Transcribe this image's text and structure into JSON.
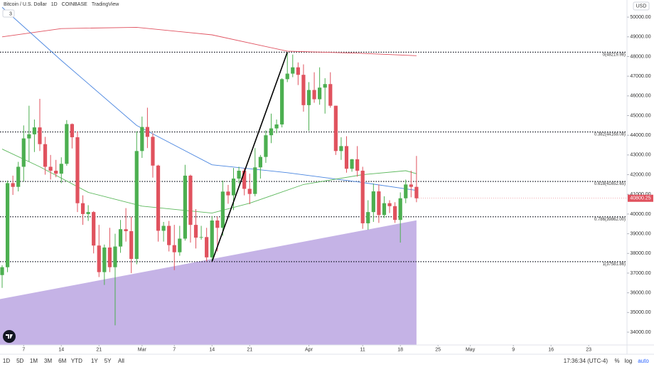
{
  "header": {
    "symbol": "Bitcoin / U.S. Dollar",
    "interval": "1D",
    "exchange": "COINBASE",
    "brand": "TradingView",
    "indicator_count": "3",
    "currency": "USD"
  },
  "chart_data": {
    "type": "candlestick",
    "up_color": "#4caf50",
    "down_color": "#e0525e",
    "x": [
      "02-03",
      "02-04",
      "02-05",
      "02-06",
      "02-07",
      "02-08",
      "02-09",
      "02-10",
      "02-11",
      "02-12",
      "02-13",
      "02-14",
      "02-15",
      "02-16",
      "02-17",
      "02-18",
      "02-19",
      "02-20",
      "02-21",
      "02-22",
      "02-23",
      "02-24",
      "02-25",
      "02-26",
      "02-27",
      "02-28",
      "03-01",
      "03-02",
      "03-03",
      "03-04",
      "03-05",
      "03-06",
      "03-07",
      "03-08",
      "03-09",
      "03-10",
      "03-11",
      "03-12",
      "03-13",
      "03-14",
      "03-15",
      "03-16",
      "03-17",
      "03-18",
      "03-19",
      "03-20",
      "03-21",
      "03-22",
      "03-23",
      "03-24",
      "03-25",
      "03-26",
      "03-27",
      "03-28",
      "03-29",
      "03-30",
      "03-31",
      "04-01",
      "04-02",
      "04-03",
      "04-04",
      "04-05",
      "04-06",
      "04-07",
      "04-08",
      "04-09",
      "04-10",
      "04-11",
      "04-12",
      "04-13",
      "04-14",
      "04-15",
      "04-16",
      "04-17",
      "04-18",
      "04-19",
      "04-20",
      "04-21"
    ],
    "open": [
      36900,
      37300,
      41570,
      41380,
      42400,
      43840,
      44050,
      44400,
      43550,
      42400,
      42200,
      42050,
      42550,
      44570,
      43900,
      40550,
      40000,
      40100,
      38400,
      37050,
      38300,
      37300,
      38350,
      39230,
      39130,
      37720,
      43200,
      44420,
      43920,
      42460,
      39150,
      39400,
      38420,
      38060,
      38750,
      41950,
      39450,
      38800,
      38830,
      37800,
      39670,
      39300,
      41140,
      40950,
      41800,
      42200,
      41280,
      41020,
      42370,
      42900,
      44000,
      44350,
      44550,
      46850,
      47130,
      47450,
      47070,
      45530,
      46300,
      45830,
      46420,
      46600,
      45500,
      43200,
      43450,
      42300,
      42780,
      42200,
      39530,
      40100,
      41150,
      39950,
      40550,
      40400,
      39700,
      40800,
      41500,
      41380
    ],
    "high": [
      37400,
      41700,
      41950,
      42650,
      44500,
      45500,
      44800,
      45850,
      43920,
      43000,
      42750,
      42880,
      44770,
      44600,
      44200,
      40950,
      40450,
      40150,
      39450,
      38450,
      39300,
      39000,
      39700,
      40300,
      39850,
      44200,
      44950,
      45400,
      44100,
      42500,
      39600,
      39650,
      39450,
      39400,
      42500,
      42000,
      40250,
      39400,
      39300,
      39900,
      39870,
      41700,
      41480,
      42340,
      42400,
      42320,
      42050,
      43350,
      43000,
      44250,
      45100,
      44800,
      46900,
      48219.98,
      48100,
      47700,
      47600,
      46700,
      47200,
      47450,
      46900,
      47200,
      45500,
      43900,
      43950,
      42800,
      43450,
      42400,
      40700,
      41550,
      41500,
      40900,
      40700,
      40600,
      41100,
      41750,
      42200,
      42950
    ],
    "low": [
      36250,
      37050,
      40970,
      41150,
      41650,
      42670,
      43150,
      43200,
      42000,
      41750,
      41870,
      41570,
      42450,
      43330,
      40100,
      39450,
      39650,
      38000,
      36800,
      36400,
      37050,
      34350,
      38030,
      38600,
      37000,
      37450,
      42850,
      43350,
      41850,
      38600,
      38600,
      38100,
      37150,
      37880,
      38650,
      38550,
      38250,
      38700,
      37600,
      37581.86,
      38100,
      38900,
      40520,
      40200,
      41550,
      40950,
      40500,
      40900,
      41800,
      42600,
      43600,
      44100,
      44400,
      46700,
      46950,
      46550,
      45200,
      44230,
      45650,
      45550,
      45100,
      45400,
      43000,
      42750,
      42100,
      42150,
      41900,
      39250,
      39200,
      39600,
      39550,
      39800,
      40050,
      39550,
      38550,
      40550,
      40850,
      40600
    ],
    "close": [
      37300,
      41570,
      41380,
      42400,
      43840,
      44050,
      44400,
      43550,
      42400,
      42200,
      42050,
      42550,
      44570,
      43900,
      40550,
      40000,
      40100,
      38400,
      37050,
      38300,
      37300,
      38350,
      39230,
      39130,
      37720,
      43200,
      44420,
      43920,
      42460,
      39150,
      39400,
      38420,
      38060,
      38750,
      41950,
      39450,
      38800,
      38830,
      37800,
      39670,
      39300,
      41140,
      40950,
      41800,
      42200,
      41280,
      41020,
      42370,
      42900,
      44000,
      44350,
      44550,
      46850,
      47130,
      47450,
      47070,
      45530,
      46300,
      45830,
      46420,
      46600,
      45500,
      43200,
      43450,
      42300,
      42780,
      42200,
      39530,
      40100,
      41150,
      39950,
      40550,
      40400,
      39700,
      40800,
      41500,
      41380,
      40800.25
    ],
    "ylim": [
      33350,
      50870
    ],
    "yticks": [
      {
        "value": 34000,
        "label": "34000.00"
      },
      {
        "value": 35000,
        "label": "35000.00"
      },
      {
        "value": 36000,
        "label": "36000.00"
      },
      {
        "value": 37000,
        "label": "37000.00"
      },
      {
        "value": 38000,
        "label": "38000.00"
      },
      {
        "value": 39000,
        "label": "39000.00"
      },
      {
        "value": 40000,
        "label": "40000.00"
      },
      {
        "value": 41000,
        "label": "41000.00"
      },
      {
        "value": 42000,
        "label": "42000.00"
      },
      {
        "value": 43000,
        "label": "43000.00"
      },
      {
        "value": 44000,
        "label": "44000.00"
      },
      {
        "value": 45000,
        "label": "45000.00"
      },
      {
        "value": 46000,
        "label": "46000.00"
      },
      {
        "value": 47000,
        "label": "47000.00"
      },
      {
        "value": 48000,
        "label": "48000.00"
      },
      {
        "value": 49000,
        "label": "49000.00"
      },
      {
        "value": 50000,
        "label": "50000.00"
      }
    ],
    "xticks": [
      {
        "value": "02-07",
        "label": "7"
      },
      {
        "value": "02-14",
        "label": "14"
      },
      {
        "value": "02-21",
        "label": "21"
      },
      {
        "value": "03-01",
        "label": "Mar"
      },
      {
        "value": "03-07",
        "label": "7"
      },
      {
        "value": "03-14",
        "label": "14"
      },
      {
        "value": "03-21",
        "label": "21"
      },
      {
        "value": "04-01",
        "label": "Apr"
      },
      {
        "value": "04-11",
        "label": "11"
      },
      {
        "value": "04-18",
        "label": "18"
      },
      {
        "value": "04-25",
        "label": "25"
      },
      {
        "value": "05-01",
        "label": "May"
      },
      {
        "value": "05-09",
        "label": "9"
      },
      {
        "value": "05-16",
        "label": "16"
      },
      {
        "value": "05-23",
        "label": "23"
      }
    ],
    "overlays": [
      {
        "color": "#e05260",
        "x": [
          "02-03",
          "02-14",
          "02-28",
          "03-14",
          "03-28",
          "04-11",
          "04-21"
        ],
        "values": [
          49000,
          49420,
          49480,
          49100,
          48270,
          48160,
          48040
        ]
      },
      {
        "color": "#4a86e0",
        "x": [
          "02-03",
          "02-14",
          "02-28",
          "03-14",
          "03-28",
          "04-11",
          "04-21"
        ],
        "values": [
          50500,
          47800,
          44500,
          42500,
          42100,
          41600,
          41200
        ]
      },
      {
        "color": "#5cb85c",
        "x": [
          "02-03",
          "02-10",
          "02-19",
          "03-01",
          "03-14",
          "03-21",
          "03-31",
          "04-11",
          "04-19",
          "04-21"
        ],
        "values": [
          43300,
          42400,
          41100,
          40400,
          40050,
          40550,
          41500,
          42000,
          42200,
          42050
        ]
      }
    ],
    "fib_levels": [
      {
        "value": 48219.98,
        "label": "0(48219.98)"
      },
      {
        "value": 44168.08,
        "label": "0.382(44168.08)"
      },
      {
        "value": 41652.65,
        "label": "0.618(41652.65)"
      },
      {
        "value": 39862.0,
        "label": "0.786(39862.00)"
      },
      {
        "value": 37581.86,
        "label": "1(37581.86)"
      }
    ],
    "trend_line": {
      "x": [
        "03-14",
        "03-28"
      ],
      "values": [
        37581.86,
        48219.98
      ]
    },
    "area": {
      "color": "#c5b3e6",
      "x": [
        "02-03",
        "04-21"
      ],
      "values": [
        35700,
        39680
      ]
    }
  },
  "toolbar": {
    "ranges": [
      "1D",
      "5D",
      "1M",
      "3M",
      "6M",
      "YTD",
      "1Y",
      "5Y",
      "All"
    ],
    "time": "17:36:34 (UTC-4)",
    "options": [
      "%",
      "log",
      "auto"
    ]
  }
}
